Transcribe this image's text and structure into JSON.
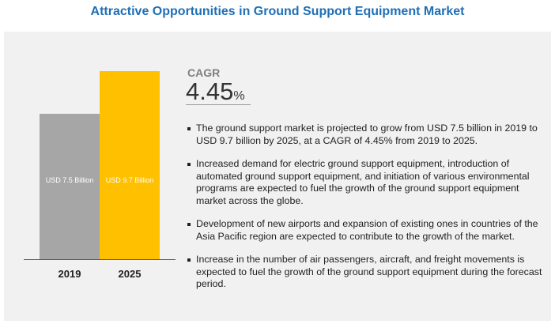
{
  "chart_data": {
    "type": "bar",
    "title": "Attractive Opportunities in Ground Support Equipment Market",
    "categories": [
      "2019",
      "2025"
    ],
    "values": [
      7.5,
      9.7
    ],
    "value_labels": [
      "USD 7.5 Billion",
      "USD 9.7 Billion"
    ],
    "colors": [
      "#a6a6a6",
      "#ffc000"
    ],
    "cagr": {
      "label": "CAGR",
      "value": "4.45",
      "unit": "%"
    },
    "bullets": [
      "The ground support market is projected to grow from USD 7.5 billion in 2019 to USD 9.7 billion by 2025, at a CAGR of 4.45% from 2019 to 2025.",
      "Increased demand for electric ground support equipment, introduction of automated ground support equipment, and initiation of various environmental programs are expected to fuel the growth of the ground support equipment market across the globe.",
      "Development of new airports and expansion of existing ones in countries of the Asia Pacific region are expected to contribute to the growth of the market.",
      "Increase in the number of air passengers, aircraft, and freight movements is expected to fuel the growth of the ground support equipment during the forecast period."
    ]
  }
}
